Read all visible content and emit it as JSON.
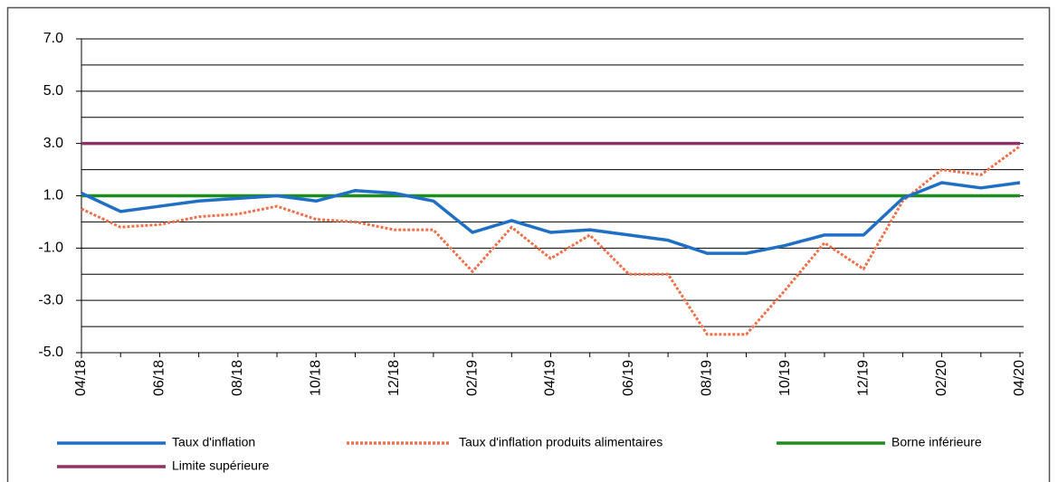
{
  "chart_data": {
    "type": "line",
    "categories": [
      "04/18",
      null,
      "06/18",
      null,
      "08/18",
      null,
      "10/18",
      null,
      "12/18",
      null,
      "02/19",
      null,
      "04/19",
      null,
      "06/19",
      null,
      "08/19",
      null,
      "10/19",
      null,
      "12/19",
      null,
      "02/20",
      null,
      "04/20"
    ],
    "series": [
      {
        "name": "Taux d'inflation",
        "color": "#1f6fc5",
        "dash": false,
        "values": [
          1.1,
          0.4,
          0.6,
          0.8,
          0.9,
          1.0,
          0.8,
          1.2,
          1.1,
          0.8,
          -0.4,
          0.05,
          -0.4,
          -0.3,
          -0.5,
          -0.7,
          -1.2,
          -1.2,
          -0.9,
          -0.5,
          -0.5,
          0.9,
          1.5,
          1.3,
          1.5
        ]
      },
      {
        "name": "Taux d'inflation produits alimentaires",
        "color": "#f0704a",
        "dash": true,
        "values": [
          0.5,
          -0.2,
          -0.1,
          0.2,
          0.3,
          0.6,
          0.1,
          0.0,
          -0.3,
          -0.3,
          -1.9,
          -0.2,
          -1.4,
          -0.5,
          -2.0,
          -2.0,
          -4.3,
          -4.3,
          -2.6,
          -0.8,
          -1.8,
          0.8,
          2.0,
          1.8,
          2.9
        ]
      },
      {
        "name": "Borne inférieure",
        "color": "#1e8c1e",
        "dash": false,
        "values": [
          1,
          1,
          1,
          1,
          1,
          1,
          1,
          1,
          1,
          1,
          1,
          1,
          1,
          1,
          1,
          1,
          1,
          1,
          1,
          1,
          1,
          1,
          1,
          1,
          1
        ]
      },
      {
        "name": "Limite supérieure",
        "color": "#8e3166",
        "dash": false,
        "values": [
          3,
          3,
          3,
          3,
          3,
          3,
          3,
          3,
          3,
          3,
          3,
          3,
          3,
          3,
          3,
          3,
          3,
          3,
          3,
          3,
          3,
          3,
          3,
          3,
          3
        ]
      }
    ],
    "ylim": [
      -5,
      7
    ],
    "yticks": [
      {
        "value": 7,
        "label": "7.0"
      },
      {
        "value": 5,
        "label": "5.0"
      },
      {
        "value": 3,
        "label": "3.0"
      },
      {
        "value": 1,
        "label": "1.0"
      },
      {
        "value": -1,
        "label": "-1.0"
      },
      {
        "value": -3,
        "label": "-3.0"
      },
      {
        "value": -5,
        "label": "-5.0"
      }
    ],
    "minor_yticks": [
      6,
      4,
      2,
      0,
      -2,
      -4
    ],
    "grid": true
  }
}
